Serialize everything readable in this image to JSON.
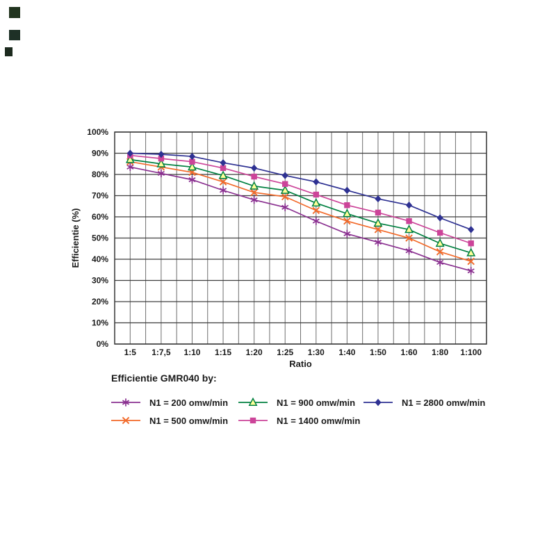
{
  "page": {
    "background": "#ffffff",
    "artifacts": [
      "scan-mark-1",
      "scan-mark-2",
      "scan-mark-3"
    ]
  },
  "chart_data": {
    "type": "line",
    "title": "",
    "xlabel": "Ratio",
    "ylabel": "Efficientie (%)",
    "ylim": [
      0,
      100
    ],
    "ytick_step": 10,
    "ytick_labels": [
      "0%",
      "10%",
      "20%",
      "30%",
      "40%",
      "50%",
      "60%",
      "70%",
      "80%",
      "90%",
      "100%"
    ],
    "categories": [
      "1:5",
      "1:7,5",
      "1:10",
      "1:15",
      "1:20",
      "1:25",
      "1:30",
      "1:40",
      "1:50",
      "1:60",
      "1:80",
      "1:100"
    ],
    "grid": "both",
    "legend_position": "bottom",
    "legend": {
      "title": "Efficientie GMR040 by:"
    },
    "series": [
      {
        "name": "N1 = 200 omw/min",
        "color": "#8a3090",
        "marker": "asterisk",
        "values": [
          83.5,
          80.5,
          77.5,
          72.5,
          68,
          64.5,
          58,
          52,
          48,
          44,
          38.5,
          34.5
        ]
      },
      {
        "name": "N1 = 500 omw/min",
        "color": "#f26a2a",
        "marker": "x",
        "values": [
          86,
          83.5,
          81,
          76.5,
          71.5,
          69.5,
          63,
          58,
          54,
          50,
          43.5,
          39
        ]
      },
      {
        "name": "N1 = 900 omw/min",
        "color": "#008040",
        "marker": "triangle",
        "marker_fill": "#ffff99",
        "values": [
          87,
          85,
          83.5,
          79.5,
          74.5,
          72.5,
          66.5,
          61.5,
          57,
          54,
          47.5,
          43
        ]
      },
      {
        "name": "N1 = 1400 omw/min",
        "color": "#cc4499",
        "marker": "square",
        "values": [
          89,
          87.5,
          86,
          83,
          79,
          75.5,
          70.5,
          65.5,
          62,
          58,
          52.5,
          47.5
        ]
      },
      {
        "name": "N1 = 2800 omw/min",
        "color": "#2e3192",
        "marker": "diamond",
        "values": [
          90,
          89.5,
          88.5,
          85.5,
          83,
          79.5,
          76.5,
          72.5,
          68.5,
          65.5,
          59.5,
          54
        ]
      }
    ],
    "colors": {
      "gridline_vertical": "#6e6e6e",
      "gridline_horizontal": "#3d3d3d",
      "axis_text": "#1a1a1a"
    }
  }
}
